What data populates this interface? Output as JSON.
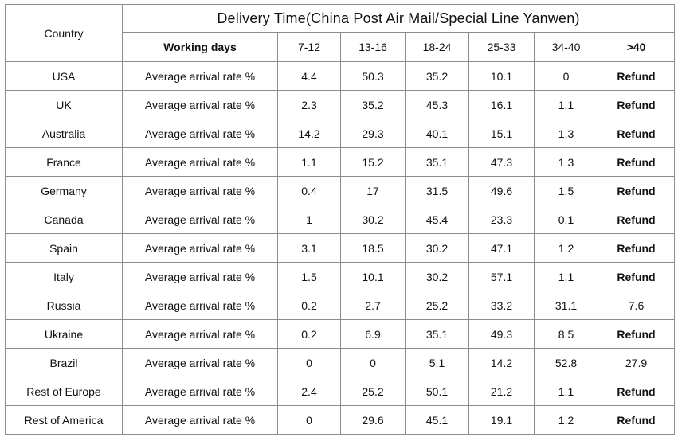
{
  "table": {
    "country_header": "Country",
    "title": "Delivery Time(China Post Air Mail/Special Line Yanwen)",
    "working_days_label": "Working days",
    "ranges": [
      "7-12",
      "13-16",
      "18-24",
      "25-33",
      "34-40",
      ">40"
    ],
    "metric_label": "Average arrival rate %",
    "rows": [
      {
        "country": "USA",
        "values": [
          "4.4",
          "50.3",
          "35.2",
          "10.1",
          "0",
          "Refund"
        ]
      },
      {
        "country": "UK",
        "values": [
          "2.3",
          "35.2",
          "45.3",
          "16.1",
          "1.1",
          "Refund"
        ]
      },
      {
        "country": "Australia",
        "values": [
          "14.2",
          "29.3",
          "40.1",
          "15.1",
          "1.3",
          "Refund"
        ]
      },
      {
        "country": "France",
        "values": [
          "1.1",
          "15.2",
          "35.1",
          "47.3",
          "1.3",
          "Refund"
        ]
      },
      {
        "country": "Germany",
        "values": [
          "0.4",
          "17",
          "31.5",
          "49.6",
          "1.5",
          "Refund"
        ]
      },
      {
        "country": "Canada",
        "values": [
          "1",
          "30.2",
          "45.4",
          "23.3",
          "0.1",
          "Refund"
        ]
      },
      {
        "country": "Spain",
        "values": [
          "3.1",
          "18.5",
          "30.2",
          "47.1",
          "1.2",
          "Refund"
        ]
      },
      {
        "country": "Italy",
        "values": [
          "1.5",
          "10.1",
          "30.2",
          "57.1",
          "1.1",
          "Refund"
        ]
      },
      {
        "country": "Russia",
        "values": [
          "0.2",
          "2.7",
          "25.2",
          "33.2",
          "31.1",
          "7.6"
        ]
      },
      {
        "country": "Ukraine",
        "values": [
          "0.2",
          "6.9",
          "35.1",
          "49.3",
          "8.5",
          "Refund"
        ]
      },
      {
        "country": "Brazil",
        "values": [
          "0",
          "0",
          "5.1",
          "14.2",
          "52.8",
          "27.9"
        ]
      },
      {
        "country": "Rest of Europe",
        "values": [
          "2.4",
          "25.2",
          "50.1",
          "21.2",
          "1.1",
          "Refund"
        ]
      },
      {
        "country": "Rest of America",
        "values": [
          "0",
          "29.6",
          "45.1",
          "19.1",
          "1.2",
          "Refund"
        ]
      }
    ]
  }
}
